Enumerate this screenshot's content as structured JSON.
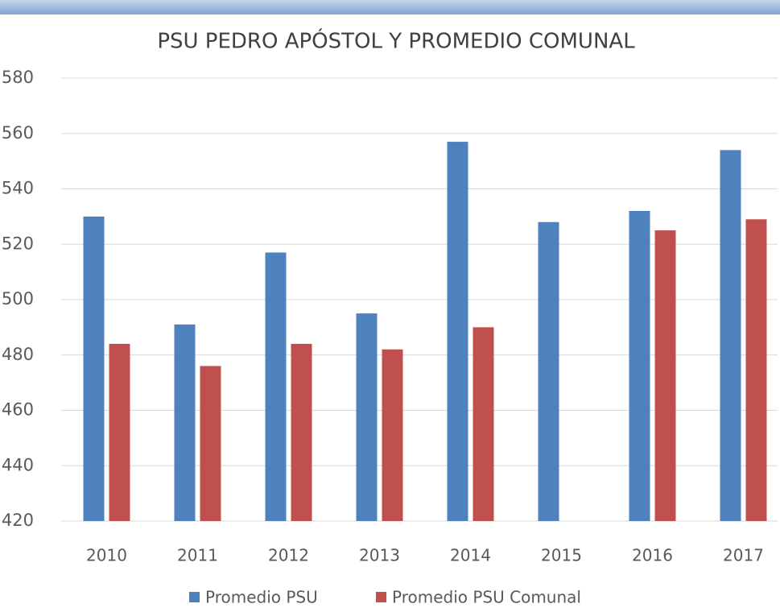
{
  "chart_data": {
    "type": "bar",
    "title": "PSU PEDRO APÓSTOL Y PROMEDIO COMUNAL",
    "categories": [
      "2010",
      "2011",
      "2012",
      "2013",
      "2014",
      "2015",
      "2016",
      "2017"
    ],
    "series": [
      {
        "name": "Promedio PSU",
        "color": "#4f81bd",
        "values": [
          530,
          491,
          517,
          495,
          557,
          528,
          532,
          554
        ]
      },
      {
        "name": "Promedio PSU Comunal",
        "color": "#c0504d",
        "values": [
          484,
          476,
          484,
          482,
          490,
          null,
          525,
          529
        ]
      }
    ],
    "ylim": [
      420,
      580
    ],
    "yticks": [
      420,
      440,
      460,
      480,
      500,
      520,
      540,
      560,
      580
    ],
    "grid": true,
    "legend": "bottom"
  }
}
